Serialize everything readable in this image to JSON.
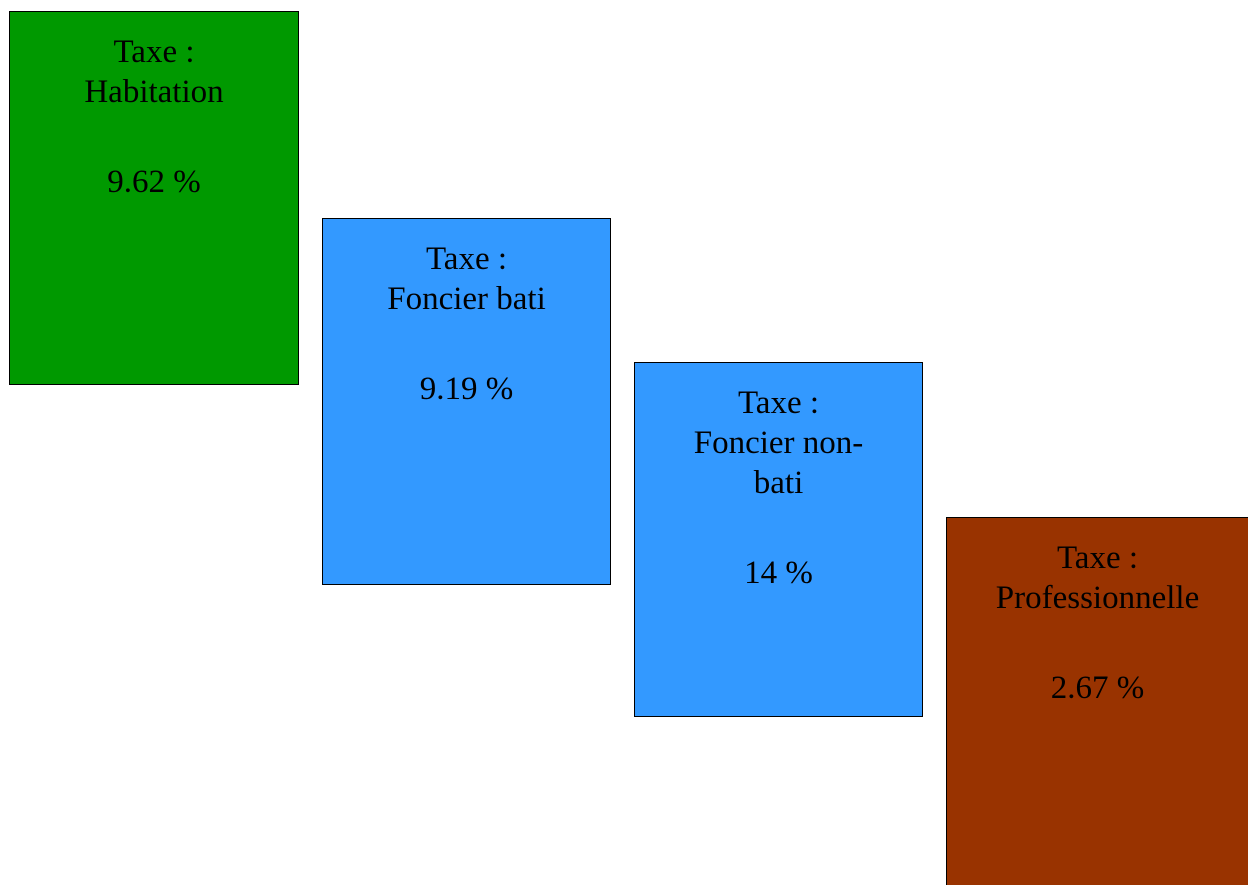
{
  "boxes": [
    {
      "title": "Taxe :",
      "name_lines": [
        "Habitation"
      ],
      "rate": "9.62 %",
      "color": "#009900"
    },
    {
      "title": "Taxe :",
      "name_lines": [
        "Foncier bati"
      ],
      "rate": "9.19 %",
      "color": "#3399ff"
    },
    {
      "title": "Taxe :",
      "name_lines": [
        "Foncier non-",
        "bati"
      ],
      "rate": "14 %",
      "color": "#3399ff"
    },
    {
      "title": "Taxe :",
      "name_lines": [
        "Professionnelle"
      ],
      "rate": "2.67 %",
      "color": "#993300"
    }
  ]
}
